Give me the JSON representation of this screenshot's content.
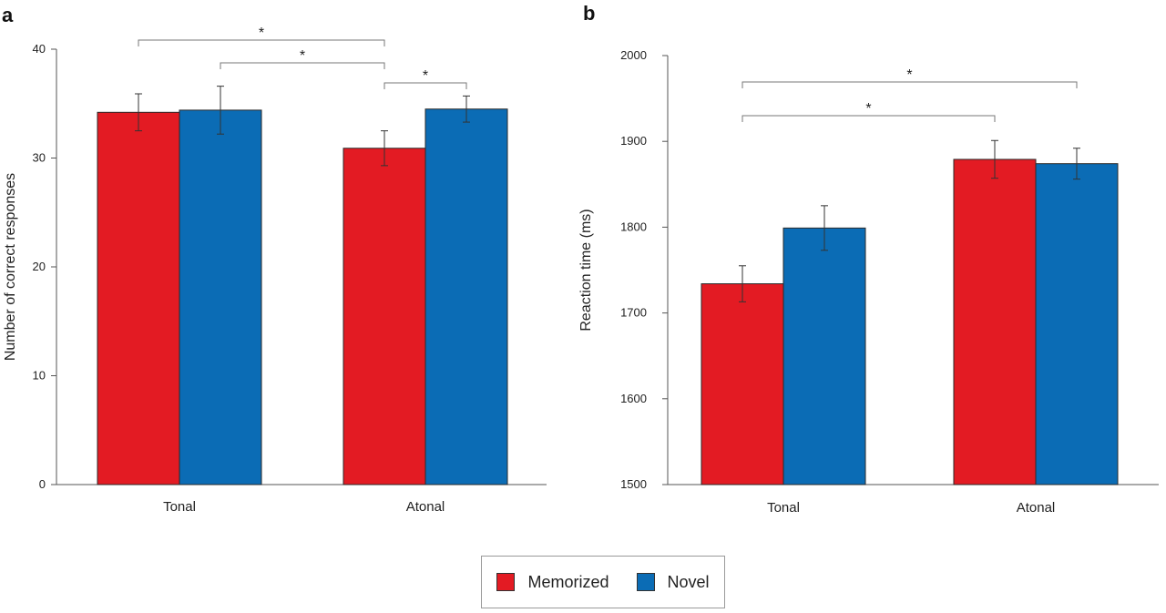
{
  "colors": {
    "memorized": "#e31b23",
    "novel": "#0b6cb5"
  },
  "legend": {
    "memorized": "Memorized",
    "novel": "Novel"
  },
  "chart_data": [
    {
      "panel": "a",
      "type": "bar",
      "categories": [
        "Tonal",
        "Atonal"
      ],
      "series": [
        {
          "name": "Memorized",
          "values": [
            34.2,
            30.9
          ],
          "errors": [
            1.7,
            1.6
          ]
        },
        {
          "name": "Novel",
          "values": [
            34.4,
            34.5
          ],
          "errors": [
            2.2,
            1.2
          ]
        }
      ],
      "ylabel": "Number of correct responses",
      "xlabel": "",
      "ylim": [
        0,
        40
      ],
      "yticks": [
        "0",
        "10",
        "20",
        "30",
        "40"
      ],
      "significance": [
        {
          "from": [
            0,
            0
          ],
          "to": [
            1,
            0
          ],
          "label": "*"
        },
        {
          "from": [
            0,
            1
          ],
          "to": [
            1,
            0
          ],
          "label": "*"
        },
        {
          "from": [
            1,
            0
          ],
          "to": [
            1,
            1
          ],
          "label": "*"
        }
      ]
    },
    {
      "panel": "b",
      "type": "bar",
      "categories": [
        "Tonal",
        "Atonal"
      ],
      "series": [
        {
          "name": "Memorized",
          "values": [
            1734,
            1879
          ],
          "errors": [
            21,
            22
          ]
        },
        {
          "name": "Novel",
          "values": [
            1799,
            1874
          ],
          "errors": [
            26,
            18
          ]
        }
      ],
      "ylabel": "Reaction time (ms)",
      "xlabel": "",
      "ylim": [
        1500,
        2000
      ],
      "yticks": [
        "1500",
        "1600",
        "1700",
        "1800",
        "1900",
        "2000"
      ],
      "significance": [
        {
          "from": [
            0,
            0
          ],
          "to": [
            1,
            0
          ],
          "label": "*"
        },
        {
          "from": [
            0,
            0
          ],
          "to": [
            1,
            1
          ],
          "label": "*"
        }
      ]
    }
  ]
}
